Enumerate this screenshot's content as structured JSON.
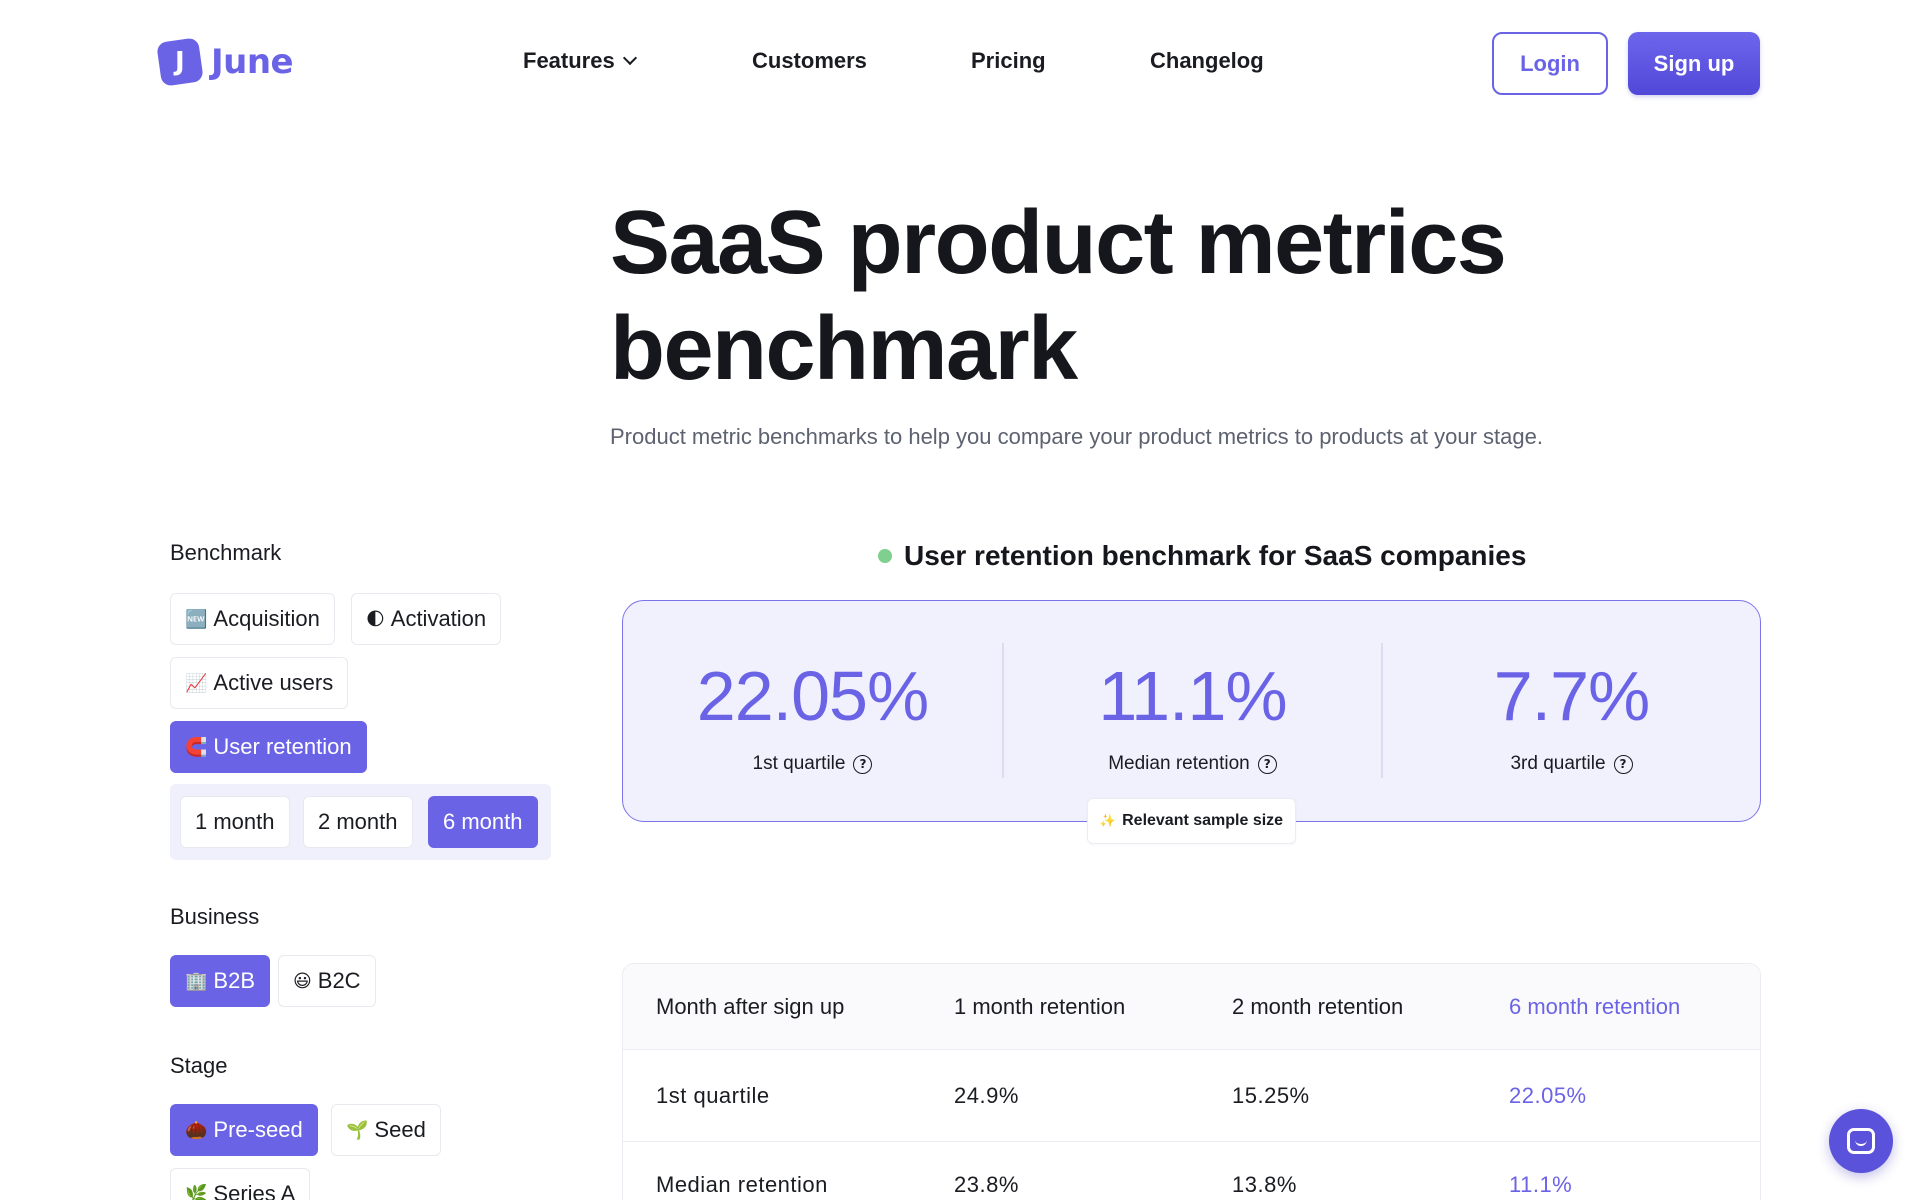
{
  "header": {
    "logo_text": "June",
    "logo_glyph": "J",
    "nav": [
      {
        "label": "Features",
        "has_dropdown": true
      },
      {
        "label": "Customers"
      },
      {
        "label": "Pricing"
      },
      {
        "label": "Changelog"
      }
    ],
    "login_label": "Login",
    "signup_label": "Sign up"
  },
  "hero": {
    "title_line1": "SaaS product metrics",
    "title_line2": "benchmark",
    "subtitle": "Product metric benchmarks to help you compare your product metrics to products at your stage."
  },
  "sidebar": {
    "benchmark_label": "Benchmark",
    "benchmark_options": [
      {
        "icon": "🆕",
        "icon_name": "new-icon",
        "label": "Acquisition"
      },
      {
        "icon": "🌓",
        "icon_name": "half-moon-icon",
        "label": "Activation"
      },
      {
        "icon": "📈",
        "icon_name": "chart-up-icon",
        "label": "Active users"
      },
      {
        "icon": "🧲",
        "icon_name": "magnet-icon",
        "label": "User retention",
        "active": true
      }
    ],
    "month_options": [
      {
        "label": "1 month"
      },
      {
        "label": "2 month"
      },
      {
        "label": "6 month",
        "active": true
      }
    ],
    "business_label": "Business",
    "business_options": [
      {
        "icon": "🏢",
        "icon_name": "building-icon",
        "label": "B2B",
        "active": true
      },
      {
        "icon": "😃",
        "icon_name": "smile-icon",
        "label": "B2C"
      }
    ],
    "stage_label": "Stage",
    "stage_options": [
      {
        "icon": "🌰",
        "icon_name": "chestnut-icon",
        "label": "Pre-seed",
        "active": true
      },
      {
        "icon": "🌱",
        "icon_name": "seedling-icon",
        "label": "Seed"
      },
      {
        "icon": "🌿",
        "icon_name": "herb-icon",
        "label": "Series A"
      }
    ]
  },
  "benchmark": {
    "title": "User retention benchmark for SaaS companies",
    "status_color": "#7fcf8f",
    "stats": [
      {
        "value": "22.05%",
        "label": "1st quartile"
      },
      {
        "value": "11.1%",
        "label": "Median retention"
      },
      {
        "value": "7.7%",
        "label": "3rd quartile"
      }
    ],
    "sample_icon": "✨",
    "sample_label": "Relevant sample size"
  },
  "table": {
    "headers": [
      "Month after sign up",
      "1 month retention",
      "2 month retention",
      "6 month retention"
    ],
    "rows": [
      [
        "1st quartile",
        "24.9%",
        "15.25%",
        "22.05%"
      ],
      [
        "Median retention",
        "23.8%",
        "13.8%",
        "11.1%"
      ]
    ]
  },
  "colors": {
    "accent": "#6b63e6",
    "card_bg": "#f1f1fd"
  }
}
